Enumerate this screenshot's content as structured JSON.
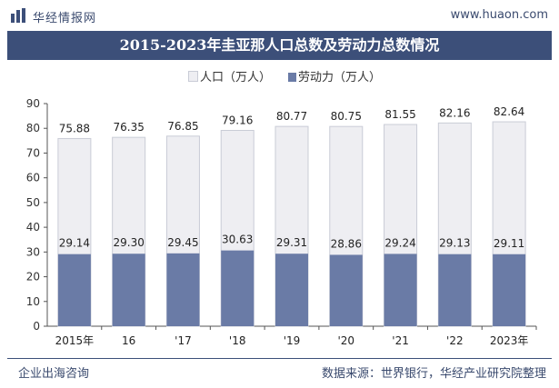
{
  "header": {
    "brand": "华经情报网",
    "site": "www.huaon.com"
  },
  "title": "2015-2023年圭亚那人口总数及劳动力总数情况",
  "footer": {
    "left": "企业出海咨询",
    "right": "数据来源：世界银行，华经产业研究院整理"
  },
  "colors": {
    "population": "#eeeef2",
    "population_stroke": "#c9ccd6",
    "labor": "#6a7ba6",
    "header": "#3c4f79"
  },
  "chart_data": {
    "type": "bar",
    "title": "2015-2023年圭亚那人口总数及劳动力总数情况",
    "categories": [
      "2015年",
      "16",
      "'17",
      "'18",
      "'19",
      "'20",
      "'21",
      "'22",
      "2023年"
    ],
    "series": [
      {
        "name": "人口（万人）",
        "values": [
          75.88,
          76.35,
          76.85,
          79.16,
          80.77,
          80.75,
          81.55,
          82.16,
          82.64
        ],
        "labels": [
          "75.88",
          "76.35",
          "76.85",
          "79.16",
          "80.77",
          "80.75",
          "81.55",
          "82.16",
          "82.64"
        ]
      },
      {
        "name": "劳动力（万人）",
        "values": [
          29.14,
          29.3,
          29.45,
          30.63,
          29.31,
          28.86,
          29.24,
          29.13,
          29.11
        ],
        "labels": [
          "29.14",
          "29.30",
          "29.45",
          "30.63",
          "29.31",
          "28.86",
          "29.24",
          "29.13",
          "29.11"
        ]
      }
    ],
    "ylim": [
      0,
      90
    ],
    "yticks": [
      "0",
      "10",
      "20",
      "30",
      "40",
      "50",
      "60",
      "70",
      "80",
      "90"
    ],
    "legend_position": "top-center",
    "grid": false
  }
}
